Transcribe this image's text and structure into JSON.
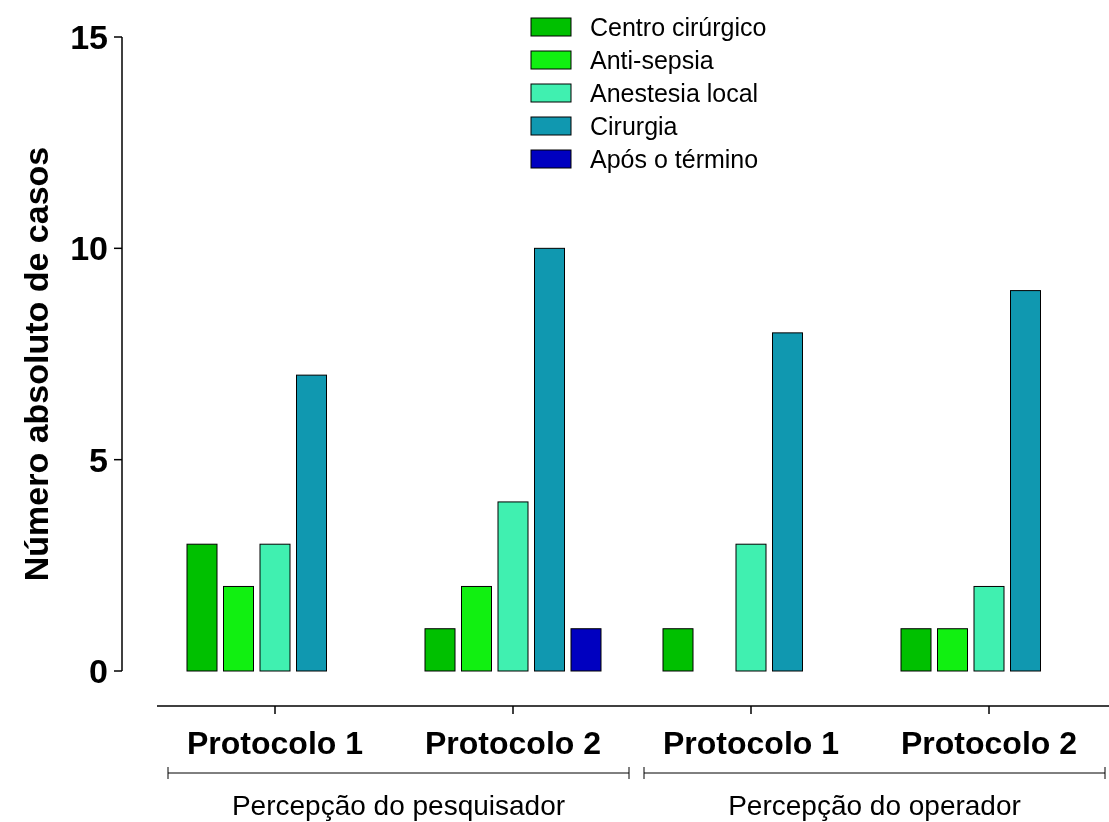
{
  "chart_data": {
    "type": "bar",
    "ylabel": "Número absoluto de casos",
    "categories": [
      "Protocolo 1",
      "Protocolo 2",
      "Protocolo 1",
      "Protocolo 2"
    ],
    "series": [
      {
        "name": "Centro cirúrgico",
        "color": "#00c000",
        "values": [
          3,
          1,
          1,
          1
        ]
      },
      {
        "name": "Anti-sepsia",
        "color": "#11f011",
        "values": [
          2,
          2,
          null,
          1
        ]
      },
      {
        "name": "Anestesia local",
        "color": "#40f0b0",
        "values": [
          3,
          4,
          3,
          2
        ]
      },
      {
        "name": "Cirurgia",
        "color": "#1098b0",
        "values": [
          7,
          10,
          8,
          9
        ]
      },
      {
        "name": "Após o término",
        "color": "#0000c0",
        "values": [
          null,
          1,
          null,
          null
        ]
      }
    ],
    "ylim": [
      0,
      15
    ],
    "yticks": [
      0,
      5,
      10,
      15
    ],
    "grid": false,
    "legend": "top",
    "annotations": [
      "Percepção do pesquisador",
      "Percepção do operador"
    ]
  }
}
